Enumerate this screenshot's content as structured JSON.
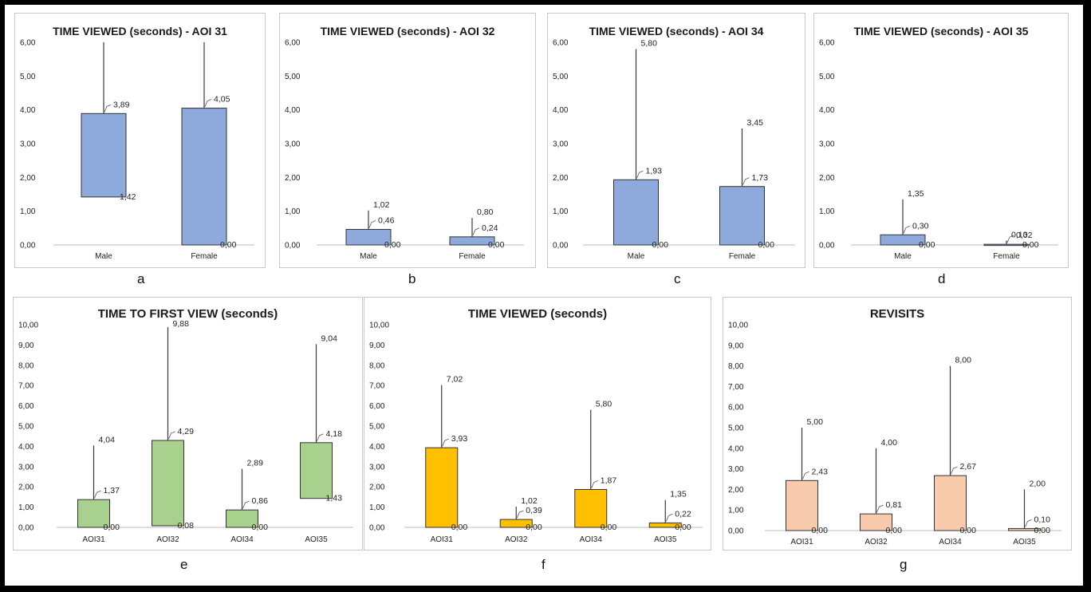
{
  "figure_letters": [
    "a",
    "b",
    "c",
    "d",
    "e",
    "f",
    "g"
  ],
  "colors": {
    "blue": "#8ea9db",
    "green": "#a9d18e",
    "gold": "#ffc000",
    "peach": "#f8cbad",
    "border": "#333333"
  },
  "chart_data": [
    {
      "type": "box",
      "title": "TIME VIEWED (seconds) - AOI 31",
      "categories": [
        "Male",
        "Female"
      ],
      "ylim": [
        0,
        6
      ],
      "yticks": [
        "0,00",
        "1,00",
        "2,00",
        "3,00",
        "4,00",
        "5,00",
        "6,00"
      ],
      "series": [
        {
          "min": 1.42,
          "max": 6.0,
          "mean": 3.89,
          "labels": [
            "1,42",
            "3,89"
          ]
        },
        {
          "min": 0.0,
          "max": 6.0,
          "mean": 4.05,
          "labels": [
            "0,00",
            "4,05"
          ]
        }
      ],
      "fill": "blue"
    },
    {
      "type": "box",
      "title": "TIME VIEWED (seconds) - AOI 32",
      "categories": [
        "Male",
        "Female"
      ],
      "ylim": [
        0,
        6
      ],
      "yticks": [
        "0,00",
        "1,00",
        "2,00",
        "3,00",
        "4,00",
        "5,00",
        "6,00"
      ],
      "series": [
        {
          "min": 0.0,
          "max": 1.02,
          "mean": 0.46,
          "labels": [
            "0,00",
            "0,46",
            "1,02"
          ]
        },
        {
          "min": 0.0,
          "max": 0.8,
          "mean": 0.24,
          "labels": [
            "0,00",
            "0,24",
            "0,80"
          ]
        }
      ],
      "fill": "blue"
    },
    {
      "type": "box",
      "title": "TIME VIEWED (seconds) - AOI 34",
      "categories": [
        "Male",
        "Female"
      ],
      "ylim": [
        0,
        6
      ],
      "yticks": [
        "0,00",
        "1,00",
        "2,00",
        "3,00",
        "4,00",
        "5,00",
        "6,00"
      ],
      "series": [
        {
          "min": 0.0,
          "max": 5.8,
          "mean": 1.93,
          "labels": [
            "0,00",
            "1,93",
            "5,80"
          ]
        },
        {
          "min": 0.0,
          "max": 3.45,
          "mean": 1.73,
          "labels": [
            "0,00",
            "1,73",
            "3,45"
          ]
        }
      ],
      "fill": "blue"
    },
    {
      "type": "box",
      "title": "TIME VIEWED (seconds) - AOI 35",
      "categories": [
        "Male",
        "Female"
      ],
      "ylim": [
        0,
        6
      ],
      "yticks": [
        "0,00",
        "1,00",
        "2,00",
        "3,00",
        "4,00",
        "5,00",
        "6,00"
      ],
      "series": [
        {
          "min": 0.0,
          "max": 1.35,
          "mean": 0.3,
          "labels": [
            "0,00",
            "0,30",
            "1,35"
          ]
        },
        {
          "min": 0.0,
          "max": 0.13,
          "mean": 0.02,
          "labels": [
            "0,00",
            "0,02",
            "0,13"
          ]
        }
      ],
      "fill": "blue"
    },
    {
      "type": "box",
      "title": "TIME TO FIRST VIEW (seconds)",
      "categories": [
        "AOI31",
        "AOI32",
        "AOI34",
        "AOI35"
      ],
      "ylim": [
        0,
        10
      ],
      "yticks": [
        "0,00",
        "1,00",
        "2,00",
        "3,00",
        "4,00",
        "5,00",
        "6,00",
        "7,00",
        "8,00",
        "9,00",
        "10,00"
      ],
      "series": [
        {
          "min": 0.0,
          "max": 4.04,
          "mean": 1.37,
          "labels": [
            "0,00",
            "1,37",
            "4,04"
          ]
        },
        {
          "min": 0.08,
          "max": 9.88,
          "mean": 4.29,
          "labels": [
            "0,08",
            "4,29",
            "9,88"
          ]
        },
        {
          "min": 0.0,
          "max": 2.89,
          "mean": 0.86,
          "labels": [
            "0,00",
            "0,86",
            "2,89"
          ]
        },
        {
          "min": 1.43,
          "max": 9.04,
          "mean": 4.18,
          "labels": [
            "1,43",
            "4,18",
            "9,04"
          ]
        }
      ],
      "fill": "green"
    },
    {
      "type": "box",
      "title": "TIME VIEWED (seconds)",
      "categories": [
        "AOI31",
        "AOI32",
        "AOI34",
        "AOI35"
      ],
      "ylim": [
        0,
        10
      ],
      "yticks": [
        "0,00",
        "1,00",
        "2,00",
        "3,00",
        "4,00",
        "5,00",
        "6,00",
        "7,00",
        "8,00",
        "9,00",
        "10,00"
      ],
      "series": [
        {
          "min": 0.0,
          "max": 7.02,
          "mean": 3.93,
          "labels": [
            "0,00",
            "3,93",
            "7,02"
          ]
        },
        {
          "min": 0.0,
          "max": 1.02,
          "mean": 0.39,
          "labels": [
            "0,00",
            "0,39",
            "1,02"
          ]
        },
        {
          "min": 0.0,
          "max": 5.8,
          "mean": 1.87,
          "labels": [
            "0,00",
            "1,87",
            "5,80"
          ]
        },
        {
          "min": 0.0,
          "max": 1.35,
          "mean": 0.22,
          "labels": [
            "0,00",
            "0,22",
            "1,35"
          ]
        }
      ],
      "fill": "gold"
    },
    {
      "type": "box",
      "title": "REVISITS",
      "categories": [
        "AOI31",
        "AOI32",
        "AOI34",
        "AOI35"
      ],
      "ylim": [
        0,
        10
      ],
      "yticks": [
        "0,00",
        "1,00",
        "2,00",
        "3,00",
        "4,00",
        "5,00",
        "6,00",
        "7,00",
        "8,00",
        "9,00",
        "10,00"
      ],
      "series": [
        {
          "min": 0.0,
          "max": 5.0,
          "mean": 2.43,
          "labels": [
            "0,00",
            "2,43",
            "5,00"
          ]
        },
        {
          "min": 0.0,
          "max": 4.0,
          "mean": 0.81,
          "labels": [
            "0,00",
            "0,81",
            "4,00"
          ]
        },
        {
          "min": 0.0,
          "max": 8.0,
          "mean": 2.67,
          "labels": [
            "0,00",
            "2,67",
            "8,00"
          ]
        },
        {
          "min": 0.0,
          "max": 2.0,
          "mean": 0.1,
          "labels": [
            "0,00",
            "0,10",
            "2,00"
          ]
        }
      ],
      "fill": "peach"
    }
  ]
}
